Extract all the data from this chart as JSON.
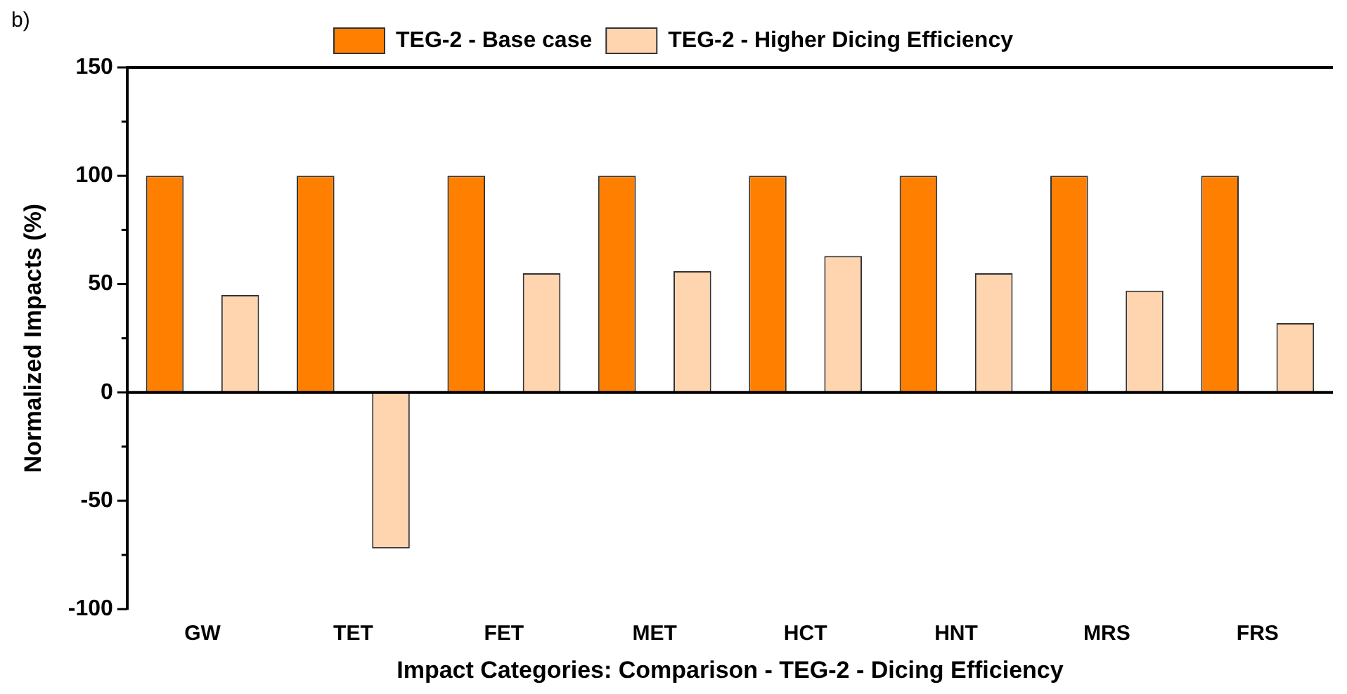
{
  "chart_data": {
    "type": "bar",
    "xlabel": "Impact Categories: Comparison - TEG-2 - Dicing Efficiency",
    "ylabel": "Normalized Impacts (%)",
    "annotations": [
      "b)"
    ],
    "categories": [
      "GW",
      "TET",
      "FET",
      "MET",
      "HCT",
      "HNT",
      "MRS",
      "FRS"
    ],
    "series": [
      {
        "name": "TEG-2 - Base case",
        "color": "#ff8000",
        "values": [
          100,
          100,
          100,
          100,
          100,
          100,
          100,
          100
        ]
      },
      {
        "name": "TEG-2 - Higher Dicing Efficiency",
        "color": "#ffd5b0",
        "values": [
          45,
          -72,
          55,
          56,
          63,
          55,
          47,
          32
        ]
      }
    ],
    "ylim": [
      -100,
      150
    ],
    "yticks": [
      -100,
      {
        "value": -75,
        "label": null
      },
      -50,
      {
        "value": -25,
        "label": null
      },
      0,
      {
        "value": 25,
        "label": null
      },
      50,
      {
        "value": 75,
        "label": null
      },
      100,
      {
        "value": 125,
        "label": null
      },
      150
    ],
    "ref_lines": [
      {
        "axis": "y",
        "value": 0,
        "color": "#000000"
      }
    ],
    "grid": false,
    "legend": "top"
  }
}
